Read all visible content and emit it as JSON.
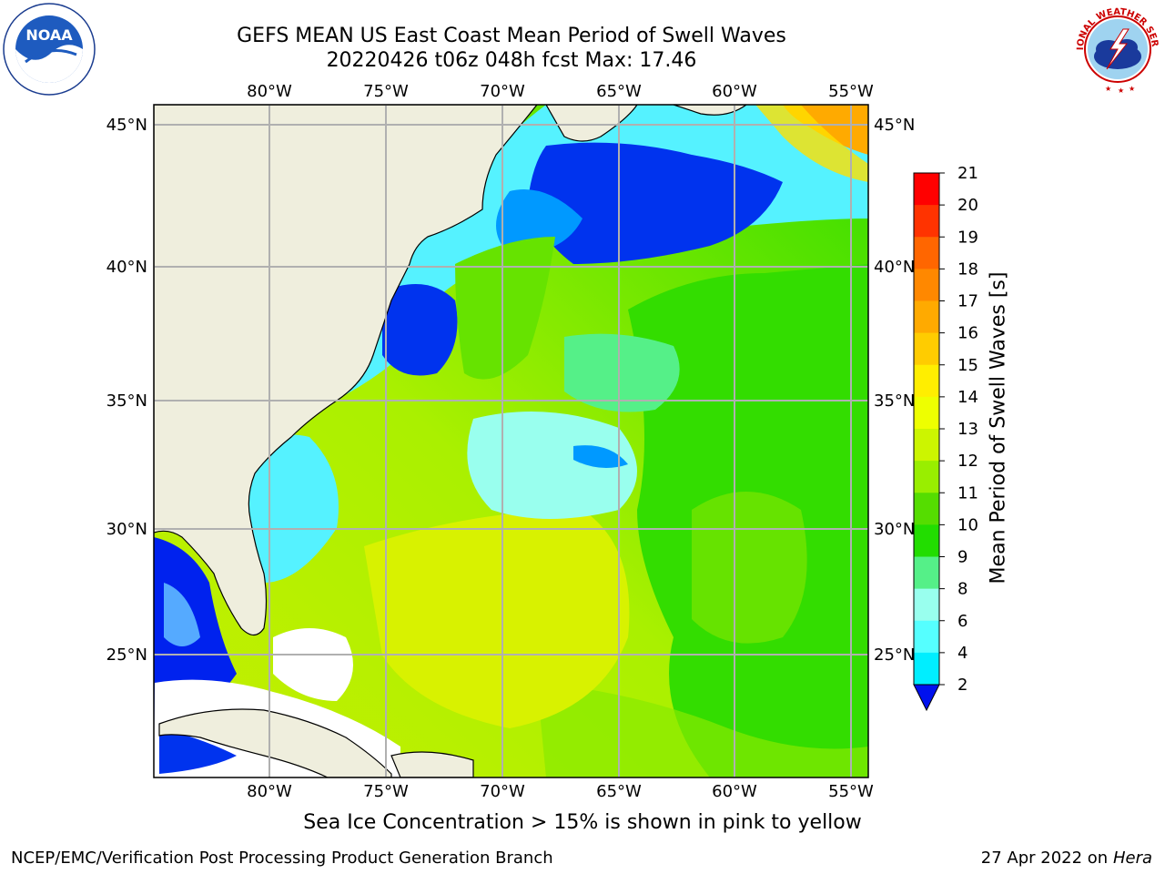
{
  "header": {
    "title_line1": "GEFS MEAN US East Coast Mean Period of Swell Waves",
    "title_line2": "20220426 t06z 048h fcst   Max: 17.46"
  },
  "logos": {
    "left": {
      "name": "noaa-logo",
      "text": "NOAA",
      "ring_text": "NATIONAL OCEANIC AND ATMOSPHERIC ADMINISTRATION · U.S. DEPARTMENT OF COMMERCE"
    },
    "right": {
      "name": "nws-logo",
      "ring_text": "NATIONAL WEATHER SERVICE"
    }
  },
  "map": {
    "lon_labels": [
      "80°W",
      "75°W",
      "70°W",
      "65°W",
      "60°W",
      "55°W"
    ],
    "lat_labels": [
      "45°N",
      "40°N",
      "35°N",
      "30°N",
      "25°N"
    ],
    "land_color": "#efeedd",
    "grid_color": "#b0b0b0"
  },
  "colorbar": {
    "label": "Mean Period of Swell Waves [s]",
    "ticks": [
      "21",
      "20",
      "19",
      "18",
      "17",
      "16",
      "15",
      "14",
      "13",
      "12",
      "11",
      "10",
      "9",
      "8",
      "6",
      "4",
      "2"
    ],
    "colors": [
      "#ff0000",
      "#ff3300",
      "#ff6600",
      "#ff8800",
      "#ffaa00",
      "#ffcc00",
      "#ffee00",
      "#eeff00",
      "#ccf500",
      "#99ee00",
      "#55dd00",
      "#22dd00",
      "#55f088",
      "#99ffee",
      "#55ffff",
      "#00eeff",
      "#00bbff",
      "#0077ff"
    ],
    "under_color": "#0011ee"
  },
  "note": "Sea Ice Concentration > 15% is shown in pink to yellow",
  "footer": {
    "left": "NCEP/EMC/Verification Post Processing Product Generation Branch",
    "right_date": "27 Apr 2022 on ",
    "right_host": "Hera"
  }
}
